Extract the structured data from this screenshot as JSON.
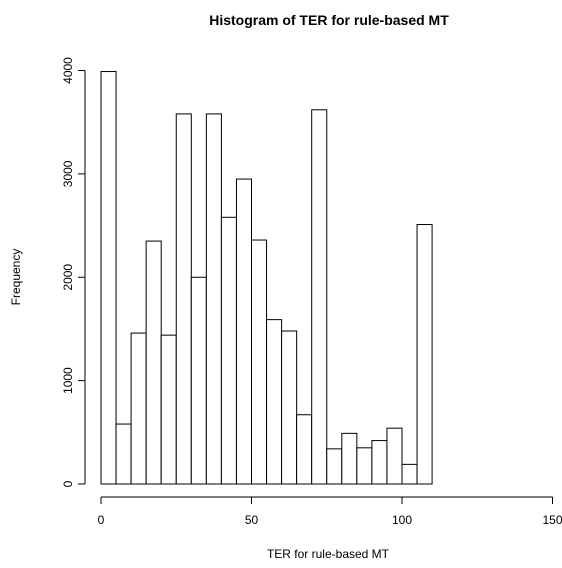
{
  "chart_data": {
    "type": "bar",
    "title": "Histogram of TER for rule-based MT",
    "xlabel": "TER for rule-based MT",
    "ylabel": "Frequency",
    "bin_width": 5,
    "bin_start": 0,
    "values": [
      3990,
      580,
      1460,
      2350,
      1440,
      3580,
      2000,
      3580,
      2580,
      2950,
      2360,
      1590,
      1480,
      670,
      3620,
      340,
      490,
      350,
      420,
      540,
      190,
      2510
    ],
    "xlim": [
      0,
      150
    ],
    "ylim": [
      0,
      4000
    ],
    "x_ticks": [
      0,
      50,
      100,
      150
    ],
    "y_ticks": [
      0,
      1000,
      2000,
      3000,
      4000
    ],
    "grid": false
  }
}
